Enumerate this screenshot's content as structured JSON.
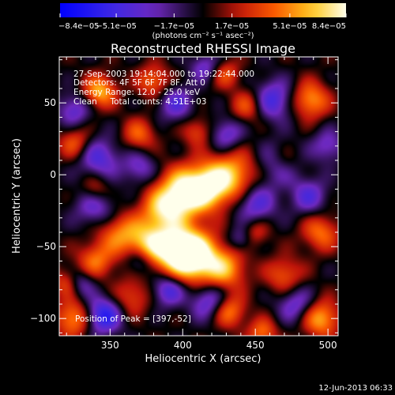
{
  "chart_data": {
    "type": "heatmap",
    "title": "Reconstructed RHESSI Image",
    "xlabel": "Heliocentric X (arcsec)",
    "ylabel": "Heliocentric Y (arcsec)",
    "xlim": [
      315,
      507
    ],
    "ylim": [
      -112,
      82
    ],
    "x_ticks": [
      350,
      400,
      450,
      500
    ],
    "y_ticks": [
      -100,
      -50,
      0,
      50
    ],
    "colorbar": {
      "ticks": [
        {
          "value": -8.4e-05,
          "label": "−8.4e−05"
        },
        {
          "value": -5.1e-05,
          "label": "−5.1e−05"
        },
        {
          "value": -1.7e-05,
          "label": "−1.7e−05"
        },
        {
          "value": 1.7e-05,
          "label": "1.7e−05"
        },
        {
          "value": 5.1e-05,
          "label": "5.1e−05"
        },
        {
          "value": 8.4e-05,
          "label": "8.4e−05"
        }
      ],
      "units": "(photons cm⁻² s⁻¹ asec⁻²)",
      "range": [
        -8.4e-05,
        8.4e-05
      ]
    },
    "annotations": [
      "27-Sep-2003 19:14:04.000 to 19:22:44.000",
      "Detectors: 4F 5F 6F 7F 8F, Att 0",
      "Energy Range: 12.0 - 25.0 keV",
      "Clean     Total counts: 4.51E+03"
    ],
    "peak_text": "Position of Peak = [397,-52]",
    "footer_date": "12-Jun-2013 06:33",
    "blobs": [
      {
        "x": 400,
        "y": -13,
        "v": 8.4e-05,
        "s": 12
      },
      {
        "x": 418,
        "y": -8,
        "v": 7e-05,
        "s": 11
      },
      {
        "x": 435,
        "y": 0,
        "v": 5.5e-05,
        "s": 12
      },
      {
        "x": 385,
        "y": -25,
        "v": 5e-05,
        "s": 10
      },
      {
        "x": 397,
        "y": -52,
        "v": 8.4e-05,
        "s": 12
      },
      {
        "x": 410,
        "y": -58,
        "v": 7.5e-05,
        "s": 12
      },
      {
        "x": 375,
        "y": -48,
        "v": 6e-05,
        "s": 11
      },
      {
        "x": 430,
        "y": -66,
        "v": 5e-05,
        "s": 10
      },
      {
        "x": 355,
        "y": -40,
        "v": 4.2e-05,
        "s": 10
      },
      {
        "x": 340,
        "y": -60,
        "v": 4.5e-05,
        "s": 9
      },
      {
        "x": 343,
        "y": 58,
        "v": 6e-05,
        "s": 8
      },
      {
        "x": 370,
        "y": 28,
        "v": 4e-05,
        "s": 8
      },
      {
        "x": 410,
        "y": 30,
        "v": 3.5e-05,
        "s": 7
      },
      {
        "x": 445,
        "y": 48,
        "v": 4e-05,
        "s": 8
      },
      {
        "x": 488,
        "y": 52,
        "v": 5.5e-05,
        "s": 9
      },
      {
        "x": 470,
        "y": 10,
        "v": 4e-05,
        "s": 8
      },
      {
        "x": 495,
        "y": -40,
        "v": 4.5e-05,
        "s": 9
      },
      {
        "x": 470,
        "y": -70,
        "v": 4e-05,
        "s": 9
      },
      {
        "x": 325,
        "y": -100,
        "v": 5.5e-05,
        "s": 9
      },
      {
        "x": 365,
        "y": -85,
        "v": 3.5e-05,
        "s": 9
      },
      {
        "x": 432,
        "y": -95,
        "v": 5e-05,
        "s": 8
      },
      {
        "x": 495,
        "y": -100,
        "v": 6e-05,
        "s": 9
      },
      {
        "x": 455,
        "y": -110,
        "v": 4.5e-05,
        "s": 7
      },
      {
        "x": 326,
        "y": 22,
        "v": 4e-05,
        "s": 8
      },
      {
        "x": 380,
        "y": 65,
        "v": 4.5e-05,
        "s": 8
      },
      {
        "x": 340,
        "y": -10,
        "v": 3.5e-05,
        "s": 7
      },
      {
        "x": 450,
        "y": -40,
        "v": 3e-05,
        "s": 7
      },
      {
        "x": 320,
        "y": -75,
        "v": 3.5e-05,
        "s": 7
      },
      {
        "x": 430,
        "y": 70,
        "v": 3.5e-05,
        "s": 7
      },
      {
        "x": 467,
        "y": 8,
        "v": -5e-05,
        "s": 10
      },
      {
        "x": 450,
        "y": -20,
        "v": -4.5e-05,
        "s": 10
      },
      {
        "x": 462,
        "y": 52,
        "v": -5e-05,
        "s": 10
      },
      {
        "x": 342,
        "y": 12,
        "v": -4.5e-05,
        "s": 10
      },
      {
        "x": 340,
        "y": -22,
        "v": -4e-05,
        "s": 10
      },
      {
        "x": 390,
        "y": -80,
        "v": -5e-05,
        "s": 8
      },
      {
        "x": 345,
        "y": -98,
        "v": -6.5e-05,
        "s": 9
      },
      {
        "x": 418,
        "y": -88,
        "v": -4.5e-05,
        "s": 9
      },
      {
        "x": 487,
        "y": -15,
        "v": -4e-05,
        "s": 9
      },
      {
        "x": 478,
        "y": -90,
        "v": -4e-05,
        "s": 9
      },
      {
        "x": 395,
        "y": 50,
        "v": -4e-05,
        "s": 9
      },
      {
        "x": 430,
        "y": 28,
        "v": -4e-05,
        "s": 8
      },
      {
        "x": 370,
        "y": 5,
        "v": -3.5e-05,
        "s": 8
      },
      {
        "x": 370,
        "y": -60,
        "v": -4e-05,
        "s": 7
      },
      {
        "x": 325,
        "y": 45,
        "v": -4e-05,
        "s": 8
      },
      {
        "x": 500,
        "y": 20,
        "v": -3.5e-05,
        "s": 8
      },
      {
        "x": 415,
        "y": 75,
        "v": -3.5e-05,
        "s": 7
      },
      {
        "x": 330,
        "y": -75,
        "v": -3.5e-05,
        "s": 7
      },
      {
        "x": 440,
        "y": -45,
        "v": -3e-05,
        "s": 6
      }
    ]
  }
}
